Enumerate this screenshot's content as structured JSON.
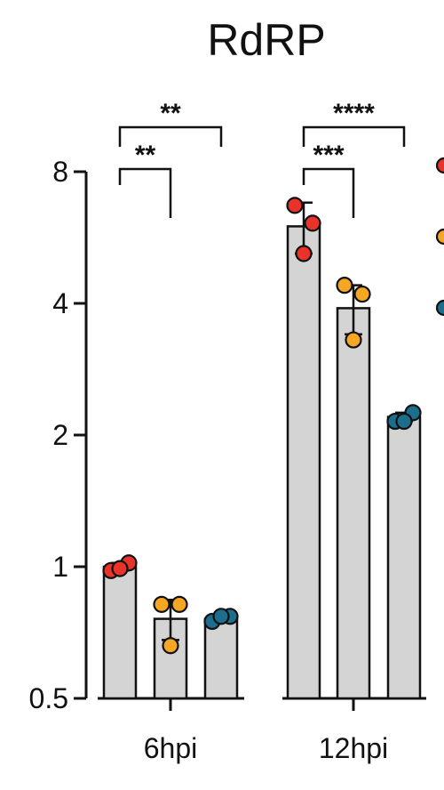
{
  "chart_data": {
    "type": "bar",
    "title": "RdRP",
    "xlabel": "",
    "ylabel": "",
    "y_scale": "log2",
    "ylim": [
      0.5,
      8
    ],
    "y_ticks": [
      0.5,
      1,
      2,
      4,
      8
    ],
    "y_tick_labels": [
      "0.5",
      "1",
      "2",
      "4",
      "8"
    ],
    "categories": [
      "6hpi",
      "12hpi"
    ],
    "colors": {
      "bar": "#d4d4d4",
      "red": "#e8322a",
      "orange": "#f5a623",
      "teal": "#1b6f8c",
      "line": "#111111"
    },
    "series": [
      {
        "color": "red",
        "values": [
          1.0,
          6.0
        ],
        "error": [
          0.02,
          0.8
        ],
        "points": [
          [
            0.98,
            1.02,
            0.99
          ],
          [
            6.7,
            6.1,
            5.2
          ]
        ]
      },
      {
        "color": "orange",
        "values": [
          0.76,
          3.9
        ],
        "error": [
          0.08,
          0.5
        ],
        "points": [
          [
            0.82,
            0.82,
            0.66
          ],
          [
            4.4,
            4.2,
            3.3
          ]
        ]
      },
      {
        "color": "teal",
        "values": [
          0.76,
          2.2
        ],
        "error": [
          0.01,
          0.05
        ],
        "points": [
          [
            0.75,
            0.77,
            0.77
          ],
          [
            2.15,
            2.25,
            2.15
          ]
        ]
      }
    ],
    "significance": [
      {
        "category": "6hpi",
        "from": 0,
        "to": 2,
        "label": "**"
      },
      {
        "category": "6hpi",
        "from": 0,
        "to": 1,
        "label": "**"
      },
      {
        "category": "12hpi",
        "from": 0,
        "to": 2,
        "label": "****"
      },
      {
        "category": "12hpi",
        "from": 0,
        "to": 1,
        "label": "***"
      }
    ],
    "legend_markers": [
      "red",
      "orange",
      "teal"
    ]
  }
}
